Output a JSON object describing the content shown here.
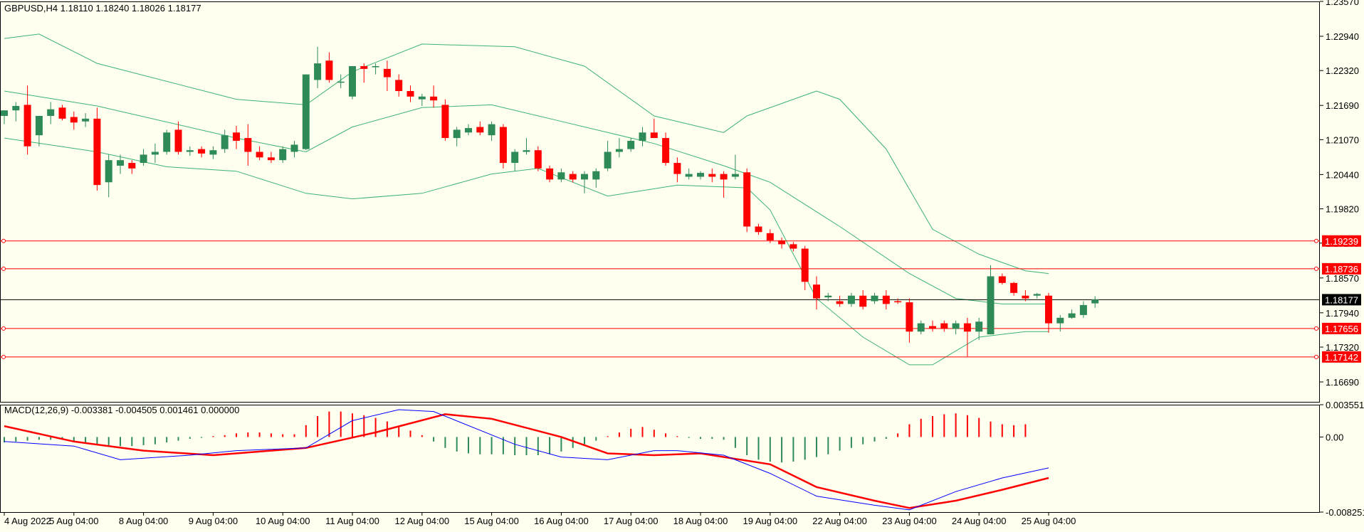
{
  "chart_data": {
    "type": "candlestick",
    "symbol_line": "GBPUSD,H4  1.18110 1.18240 1.18026 1.18177",
    "colors": {
      "background": "#FFFFF0",
      "bull": "#2E8B57",
      "bear": "#FF0000",
      "bands": "#3CB371",
      "level": "#FF0000",
      "price_line": "#000000",
      "macd": "#0000FF",
      "signal": "#FF0000"
    },
    "price_axis": {
      "ylim": [
        1.1633,
        1.2357
      ],
      "ticks": [
        "1.23570",
        "1.22940",
        "1.22320",
        "1.21690",
        "1.21070",
        "1.20440",
        "1.19820",
        "1.19200",
        "1.18570",
        "1.17940",
        "1.17320",
        "1.16690"
      ]
    },
    "x_labels": [
      {
        "label": "4 Aug 2022",
        "index": 0
      },
      {
        "label": "5 Aug 04:00",
        "index": 6
      },
      {
        "label": "8 Aug 04:00",
        "index": 12
      },
      {
        "label": "9 Aug 04:00",
        "index": 18
      },
      {
        "label": "10 Aug 04:00",
        "index": 24
      },
      {
        "label": "11 Aug 04:00",
        "index": 30
      },
      {
        "label": "12 Aug 04:00",
        "index": 36
      },
      {
        "label": "15 Aug 04:00",
        "index": 42
      },
      {
        "label": "16 Aug 04:00",
        "index": 48
      },
      {
        "label": "17 Aug 04:00",
        "index": 54
      },
      {
        "label": "18 Aug 04:00",
        "index": 60
      },
      {
        "label": "19 Aug 04:00",
        "index": 66
      },
      {
        "label": "22 Aug 04:00",
        "index": 72
      },
      {
        "label": "23 Aug 04:00",
        "index": 78
      },
      {
        "label": "24 Aug 04:00",
        "index": 84
      },
      {
        "label": "25 Aug 04:00",
        "index": 90
      }
    ],
    "levels": [
      {
        "value": 1.19239,
        "label": "1.19239"
      },
      {
        "value": 1.18736,
        "label": "1.18736"
      },
      {
        "value": 1.17656,
        "label": "1.17656"
      },
      {
        "value": 1.17142,
        "label": "1.17142"
      }
    ],
    "current_price": {
      "value": 1.18177,
      "label": "1.18177"
    },
    "candles": [
      [
        1.215,
        1.216,
        1.2135,
        1.216
      ],
      [
        1.216,
        1.2175,
        1.214,
        1.2168
      ],
      [
        1.217,
        1.2205,
        1.208,
        1.2095
      ],
      [
        1.2115,
        1.215,
        1.2095,
        1.215
      ],
      [
        1.215,
        1.2175,
        1.2135,
        1.2162
      ],
      [
        1.2165,
        1.217,
        1.2142,
        1.2145
      ],
      [
        1.2148,
        1.2158,
        1.2125,
        1.2138
      ],
      [
        1.214,
        1.2155,
        1.213,
        1.2145
      ],
      [
        1.2145,
        1.2165,
        1.2015,
        1.2025
      ],
      [
        1.203,
        1.208,
        1.2003,
        1.207
      ],
      [
        1.206,
        1.208,
        1.2045,
        1.207
      ],
      [
        1.2065,
        1.207,
        1.2045,
        1.2055
      ],
      [
        1.2065,
        1.209,
        1.206,
        1.208
      ],
      [
        1.208,
        1.21,
        1.2065,
        1.2085
      ],
      [
        1.2085,
        1.2125,
        1.208,
        1.212
      ],
      [
        1.2125,
        1.214,
        1.208,
        1.2085
      ],
      [
        1.2085,
        1.2095,
        1.2078,
        1.2088
      ],
      [
        1.209,
        1.2095,
        1.2075,
        1.2082
      ],
      [
        1.208,
        1.2095,
        1.2072,
        1.2088
      ],
      [
        1.209,
        1.2125,
        1.2083,
        1.2115
      ],
      [
        1.212,
        1.2132,
        1.209,
        1.2105
      ],
      [
        1.211,
        1.2135,
        1.206,
        1.2085
      ],
      [
        1.2085,
        1.2095,
        1.207,
        1.2075
      ],
      [
        1.2075,
        1.2085,
        1.2065,
        1.207
      ],
      [
        1.207,
        1.2095,
        1.2065,
        1.209
      ],
      [
        1.2085,
        1.2105,
        1.2075,
        1.2098
      ],
      [
        1.209,
        1.2225,
        1.2088,
        1.2225
      ],
      [
        1.2215,
        1.2275,
        1.22,
        1.2245
      ],
      [
        1.225,
        1.2265,
        1.221,
        1.2215
      ],
      [
        1.221,
        1.2225,
        1.22,
        1.2212
      ],
      [
        1.2185,
        1.224,
        1.218,
        1.224
      ],
      [
        1.224,
        1.2245,
        1.221,
        1.2235
      ],
      [
        1.2238,
        1.2245,
        1.2225,
        1.224
      ],
      [
        1.2235,
        1.225,
        1.2195,
        1.222
      ],
      [
        1.2215,
        1.2225,
        1.2185,
        1.2195
      ],
      [
        1.2195,
        1.2205,
        1.2175,
        1.2185
      ],
      [
        1.218,
        1.219,
        1.2168,
        1.2185
      ],
      [
        1.2185,
        1.2205,
        1.2165,
        1.2178
      ],
      [
        1.217,
        1.218,
        1.2105,
        1.211
      ],
      [
        1.211,
        1.213,
        1.2095,
        1.2125
      ],
      [
        1.212,
        1.2135,
        1.2115,
        1.2128
      ],
      [
        1.213,
        1.214,
        1.2115,
        1.212
      ],
      [
        1.2115,
        1.214,
        1.2105,
        1.2135
      ],
      [
        1.213,
        1.2135,
        1.2055,
        1.2065
      ],
      [
        1.2065,
        1.209,
        1.205,
        1.2085
      ],
      [
        1.2085,
        1.211,
        1.208,
        1.2088
      ],
      [
        1.2088,
        1.2095,
        1.205,
        1.2055
      ],
      [
        1.2055,
        1.206,
        1.203,
        1.2035
      ],
      [
        1.2035,
        1.2055,
        1.203,
        1.2048
      ],
      [
        1.2045,
        1.205,
        1.203,
        1.2035
      ],
      [
        1.2035,
        1.205,
        1.201,
        1.2045
      ],
      [
        1.2035,
        1.2055,
        1.202,
        1.205
      ],
      [
        1.2055,
        1.2105,
        1.205,
        1.2085
      ],
      [
        1.2085,
        1.211,
        1.2075,
        1.209
      ],
      [
        1.209,
        1.211,
        1.2085,
        1.2105
      ],
      [
        1.2105,
        1.213,
        1.2095,
        1.212
      ],
      [
        1.212,
        1.2145,
        1.211,
        1.211
      ],
      [
        1.211,
        1.212,
        1.206,
        1.2065
      ],
      [
        1.2065,
        1.2075,
        1.203,
        1.2045
      ],
      [
        1.204,
        1.2055,
        1.2035,
        1.2045
      ],
      [
        1.204,
        1.205,
        1.2035,
        1.2047
      ],
      [
        1.2045,
        1.2055,
        1.203,
        1.204
      ],
      [
        1.2045,
        1.205,
        1.2002,
        1.2035
      ],
      [
        1.204,
        1.208,
        1.2035,
        1.2045
      ],
      [
        1.2048,
        1.2055,
        1.194,
        1.195
      ],
      [
        1.195,
        1.1955,
        1.1935,
        1.194
      ],
      [
        1.1938,
        1.1945,
        1.192,
        1.1925
      ],
      [
        1.1925,
        1.193,
        1.191,
        1.1918
      ],
      [
        1.1918,
        1.1922,
        1.1905,
        1.191
      ],
      [
        1.191,
        1.1915,
        1.1835,
        1.185
      ],
      [
        1.1845,
        1.186,
        1.18,
        1.182
      ],
      [
        1.1822,
        1.183,
        1.1815,
        1.1825
      ],
      [
        1.1815,
        1.1825,
        1.1805,
        1.181
      ],
      [
        1.181,
        1.183,
        1.1805,
        1.1825
      ],
      [
        1.1825,
        1.1835,
        1.18,
        1.1805
      ],
      [
        1.1815,
        1.183,
        1.181,
        1.1825
      ],
      [
        1.1825,
        1.1835,
        1.18,
        1.181
      ],
      [
        1.1815,
        1.182,
        1.181,
        1.1813
      ],
      [
        1.1813,
        1.182,
        1.174,
        1.176
      ],
      [
        1.176,
        1.178,
        1.1755,
        1.1775
      ],
      [
        1.177,
        1.178,
        1.176,
        1.1765
      ],
      [
        1.1775,
        1.178,
        1.176,
        1.1765
      ],
      [
        1.1765,
        1.178,
        1.1755,
        1.1775
      ],
      [
        1.1775,
        1.1785,
        1.1715,
        1.176
      ],
      [
        1.176,
        1.1785,
        1.1745,
        1.1778
      ],
      [
        1.1755,
        1.188,
        1.1755,
        1.186
      ],
      [
        1.186,
        1.1865,
        1.1845,
        1.1848
      ],
      [
        1.1848,
        1.185,
        1.1825,
        1.183
      ],
      [
        1.1825,
        1.1835,
        1.1815,
        1.182
      ],
      [
        1.1825,
        1.183,
        1.182,
        1.1828
      ],
      [
        1.1825,
        1.183,
        1.1758,
        1.1775
      ],
      [
        1.1775,
        1.179,
        1.176,
        1.1785
      ],
      [
        1.1785,
        1.18,
        1.1783,
        1.1793
      ],
      [
        1.179,
        1.1815,
        1.1785,
        1.1808
      ],
      [
        1.1811,
        1.1824,
        1.1803,
        1.1818
      ]
    ],
    "bands": {
      "upper": [
        [
          0,
          1.229
        ],
        [
          3,
          1.2298
        ],
        [
          8,
          1.2245
        ],
        [
          20,
          1.218
        ],
        [
          26,
          1.217
        ],
        [
          30,
          1.223
        ],
        [
          36,
          1.228
        ],
        [
          44,
          1.2275
        ],
        [
          50,
          1.224
        ],
        [
          56,
          1.215
        ],
        [
          62,
          1.212
        ],
        [
          64,
          1.215
        ],
        [
          70,
          1.2195
        ],
        [
          72,
          1.218
        ],
        [
          76,
          1.209
        ],
        [
          80,
          1.1945
        ],
        [
          84,
          1.19
        ],
        [
          88,
          1.187
        ],
        [
          90,
          1.1865
        ]
      ],
      "middle": [
        [
          0,
          1.2195
        ],
        [
          8,
          1.2168
        ],
        [
          20,
          1.211
        ],
        [
          26,
          1.2085
        ],
        [
          30,
          1.213
        ],
        [
          36,
          1.2165
        ],
        [
          42,
          1.217
        ],
        [
          48,
          1.214
        ],
        [
          56,
          1.21
        ],
        [
          62,
          1.206
        ],
        [
          66,
          1.203
        ],
        [
          72,
          1.195
        ],
        [
          78,
          1.1865
        ],
        [
          82,
          1.182
        ],
        [
          86,
          1.181
        ],
        [
          90,
          1.181
        ]
      ],
      "lower": [
        [
          0,
          1.211
        ],
        [
          8,
          1.2085
        ],
        [
          14,
          1.2058
        ],
        [
          20,
          1.205
        ],
        [
          26,
          1.201
        ],
        [
          30,
          1.2
        ],
        [
          36,
          1.201
        ],
        [
          42,
          1.2045
        ],
        [
          46,
          1.2055
        ],
        [
          52,
          1.2005
        ],
        [
          58,
          1.2025
        ],
        [
          64,
          1.202
        ],
        [
          66,
          1.198
        ],
        [
          70,
          1.182
        ],
        [
          74,
          1.175
        ],
        [
          78,
          1.17
        ],
        [
          80,
          1.17
        ],
        [
          84,
          1.175
        ],
        [
          88,
          1.176
        ],
        [
          90,
          1.176
        ]
      ]
    },
    "macd": {
      "label": "MACD(12,26,9) -0.003381 -0.004505 0.001461 0.000000",
      "ylim": [
        -0.008251,
        0.003551
      ],
      "ticks": [
        "0.003551",
        "0.00",
        "-0.008251"
      ],
      "histogram": [
        -0.0006,
        -0.0005,
        -0.0004,
        -0.0003,
        -0.0003,
        -0.0003,
        -0.0005,
        -0.0006,
        -0.0008,
        -0.0009,
        -0.001,
        -0.001,
        -0.0009,
        -0.0008,
        -0.0006,
        -0.0004,
        -0.0002,
        -0.0001,
        0.0001,
        0.0002,
        0.0004,
        0.0005,
        0.0005,
        0.0004,
        0.0003,
        0.0003,
        0.0013,
        0.0023,
        0.0028,
        0.0028,
        0.0026,
        0.0024,
        0.0021,
        0.0017,
        0.0012,
        0.0007,
        0.0002,
        -0.0005,
        -0.0012,
        -0.0016,
        -0.0018,
        -0.0019,
        -0.0019,
        -0.0019,
        -0.002,
        -0.002,
        -0.002,
        -0.0019,
        -0.0016,
        -0.0012,
        -0.0008,
        -0.0004,
        0.0001,
        0.0005,
        0.0009,
        0.0011,
        0.0008,
        0.0004,
        0.0001,
        -0.0001,
        -0.0002,
        -0.0002,
        -0.0003,
        -0.0012,
        -0.002,
        -0.0025,
        -0.0027,
        -0.0028,
        -0.0027,
        -0.0025,
        -0.0022,
        -0.0019,
        -0.0015,
        -0.0012,
        -0.0008,
        -0.0005,
        -0.0002,
        0.0004,
        0.0014,
        0.002,
        0.0023,
        0.0025,
        0.0026,
        0.0024,
        0.0021,
        0.0017,
        0.0014,
        0.0013,
        0.0014
      ],
      "macd_line": [
        [
          0,
          -0.0005
        ],
        [
          6,
          -0.001
        ],
        [
          10,
          -0.0025
        ],
        [
          16,
          -0.002
        ],
        [
          20,
          -0.0015
        ],
        [
          26,
          -0.0012
        ],
        [
          30,
          0.0018
        ],
        [
          34,
          0.003
        ],
        [
          37,
          0.0028
        ],
        [
          44,
          -0.0008
        ],
        [
          48,
          -0.0022
        ],
        [
          52,
          -0.0025
        ],
        [
          56,
          -0.0015
        ],
        [
          58,
          -0.0015
        ],
        [
          62,
          -0.002
        ],
        [
          66,
          -0.004
        ],
        [
          70,
          -0.0065
        ],
        [
          75,
          -0.0075
        ],
        [
          78,
          -0.008
        ],
        [
          82,
          -0.006
        ],
        [
          86,
          -0.0045
        ],
        [
          90,
          -0.0034
        ]
      ],
      "signal_line": [
        [
          0,
          0.0012
        ],
        [
          6,
          -0.0005
        ],
        [
          12,
          -0.0015
        ],
        [
          18,
          -0.002
        ],
        [
          26,
          -0.0012
        ],
        [
          32,
          0.0005
        ],
        [
          38,
          0.0025
        ],
        [
          42,
          0.002
        ],
        [
          48,
          0.0
        ],
        [
          52,
          -0.0018
        ],
        [
          56,
          -0.002
        ],
        [
          60,
          -0.0018
        ],
        [
          66,
          -0.003
        ],
        [
          70,
          -0.0055
        ],
        [
          75,
          -0.007
        ],
        [
          78,
          -0.0078
        ],
        [
          82,
          -0.007
        ],
        [
          86,
          -0.0058
        ],
        [
          90,
          -0.0045
        ]
      ]
    }
  }
}
